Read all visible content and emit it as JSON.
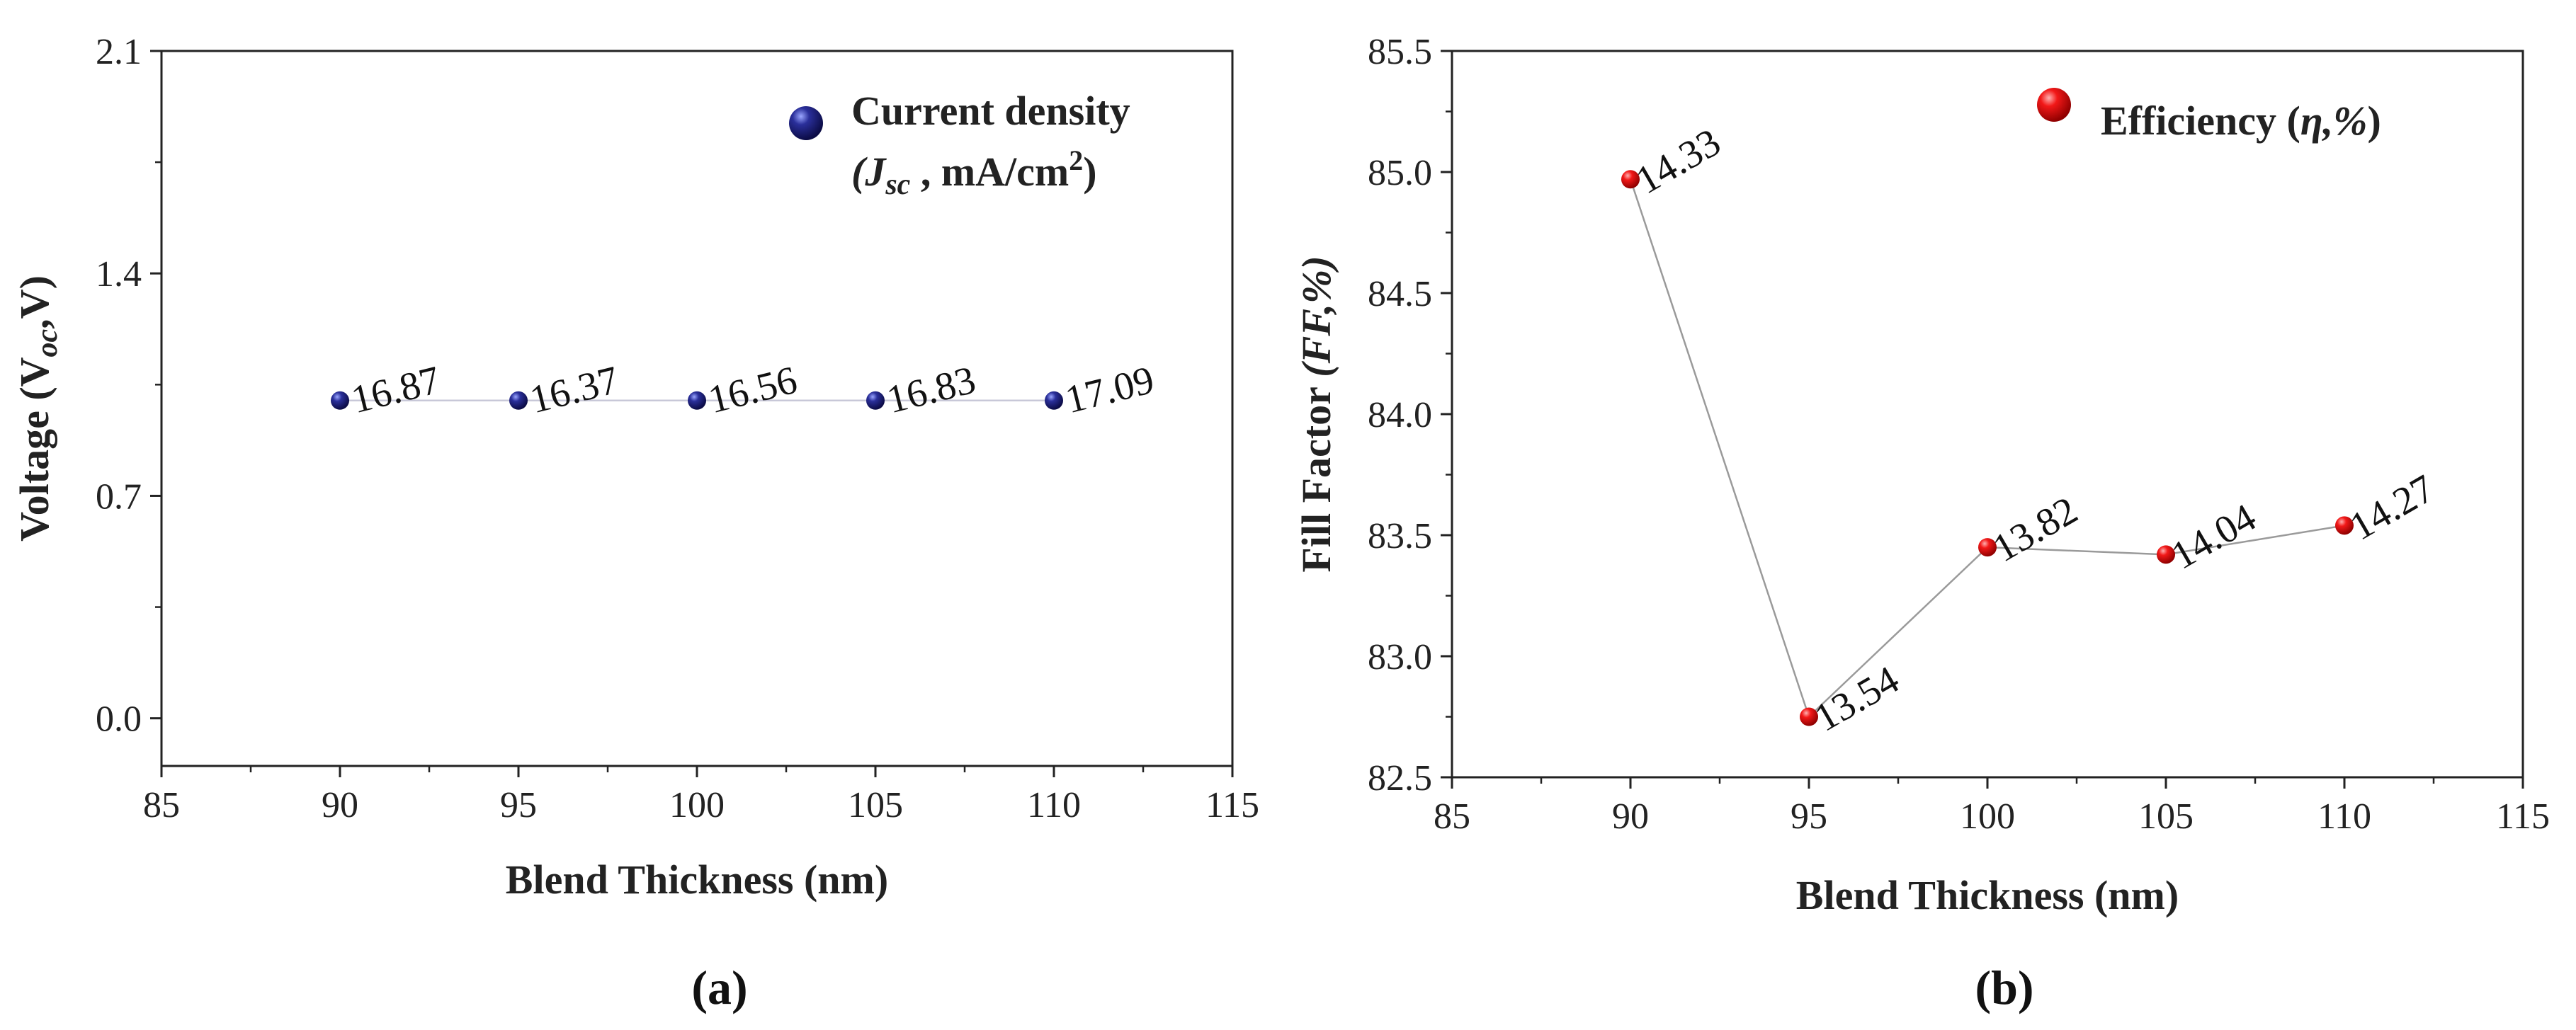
{
  "chart_data": [
    {
      "type": "scatter",
      "panel_label": "(a)",
      "xlabel": "Blend Thickness (nm)",
      "ylabel": "Voltage (V",
      "ylabel_sub": "oc",
      "ylabel_tail": ",V)",
      "xlim": [
        85,
        115
      ],
      "ylim": [
        -0.15,
        2.1
      ],
      "xticks": [
        85,
        90,
        95,
        100,
        105,
        110,
        115
      ],
      "yticks": [
        0.0,
        0.7,
        1.4,
        2.1
      ],
      "ytick_labels": [
        "0.0",
        "0.7",
        "1.4",
        "2.1"
      ],
      "legend": {
        "line1": "Current density",
        "line2_prefix": "(J",
        "line2_sub": "sc",
        "line2_mid": " , mA/cm",
        "line2_sup": "2",
        "line2_end": ")"
      },
      "series": [
        {
          "name": "Current density",
          "color": "#1c1c6e",
          "x": [
            90,
            95,
            100,
            105,
            110
          ],
          "y": [
            1.0,
            1.0,
            1.0,
            1.0,
            1.0
          ],
          "labels": [
            "16.87",
            "16.37",
            "16.56",
            "16.83",
            "17.09"
          ]
        }
      ]
    },
    {
      "type": "line",
      "panel_label": "(b)",
      "xlabel": "Blend Thickness (nm)",
      "ylabel": "Fill Factor ",
      "ylabel_italic": "(FF,%)",
      "xlim": [
        85,
        115
      ],
      "ylim": [
        82.5,
        85.5
      ],
      "xticks": [
        85,
        90,
        95,
        100,
        105,
        110,
        115
      ],
      "yticks": [
        82.5,
        83.0,
        83.5,
        84.0,
        84.5,
        85.0,
        85.5
      ],
      "ytick_labels": [
        "82.5",
        "83.0",
        "83.5",
        "84.0",
        "84.5",
        "85.0",
        "85.5"
      ],
      "legend": {
        "label_prefix": "Efficiency (",
        "label_italic": "η,%",
        "label_end": ")"
      },
      "series": [
        {
          "name": "Efficiency",
          "color": "#e01010",
          "x": [
            90,
            95,
            100,
            105,
            110
          ],
          "y": [
            84.97,
            82.75,
            83.45,
            83.42,
            83.54
          ],
          "labels": [
            "14.33",
            "13.54",
            "13.82",
            "14.04",
            "14.27"
          ]
        }
      ]
    }
  ]
}
